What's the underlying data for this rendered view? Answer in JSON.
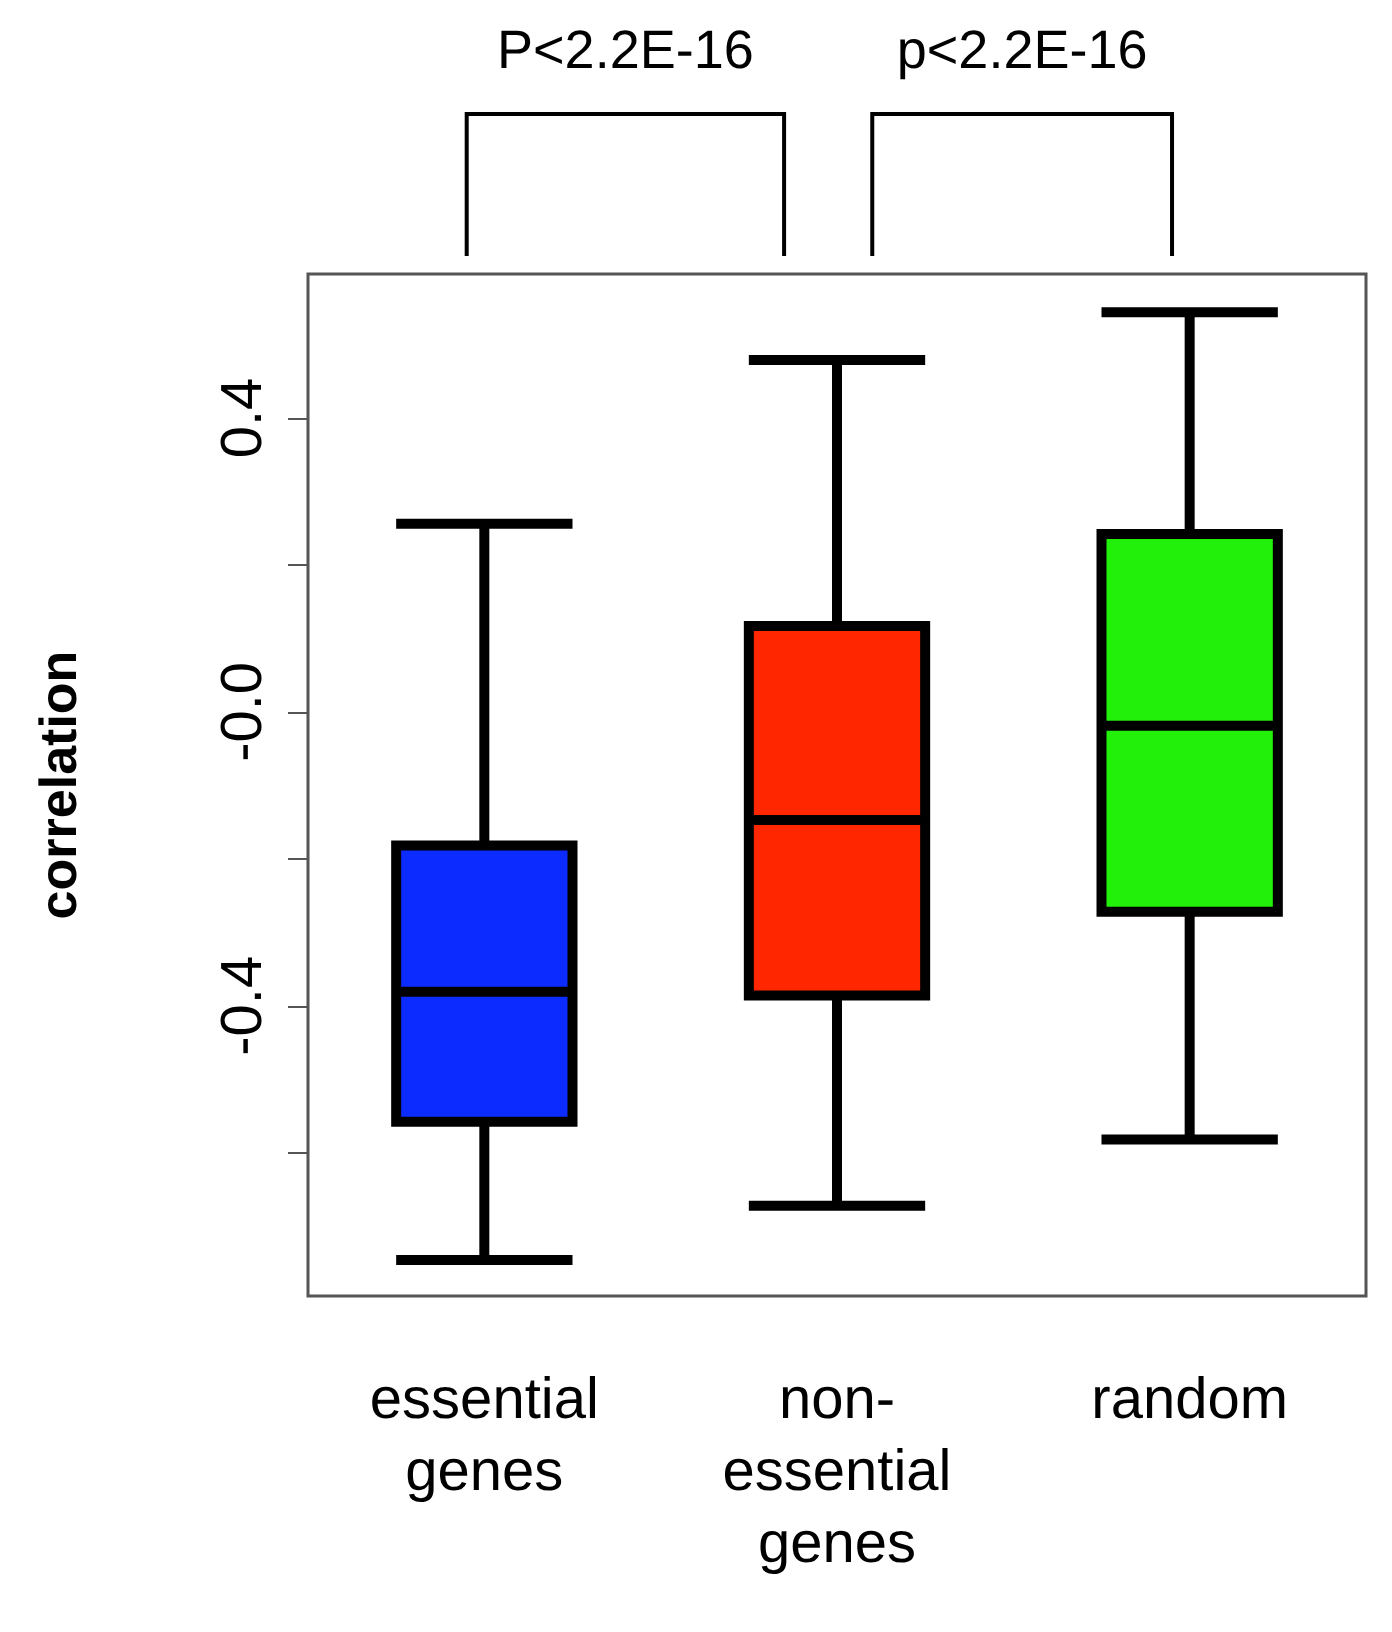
{
  "chart_data": {
    "type": "box",
    "ylabel": "correlation",
    "categories": [
      "essential\ngenes",
      "non-\nessential\ngenes",
      "random"
    ],
    "colors": [
      "#0c2cff",
      "#ff2600",
      "#22f00a"
    ],
    "boxes": [
      {
        "low": -0.746,
        "q1": -0.558,
        "median": -0.381,
        "q3": -0.182,
        "high": 0.256
      },
      {
        "low": -0.672,
        "q1": -0.386,
        "median": -0.147,
        "q3": 0.117,
        "high": 0.479
      },
      {
        "low": -0.582,
        "q1": -0.272,
        "median": -0.019,
        "q3": 0.242,
        "high": 0.544
      }
    ],
    "ylim": [
      -0.795,
      0.596
    ],
    "yticks": [
      {
        "value": -0.6,
        "label": null
      },
      -0.4,
      {
        "value": -0.2,
        "label": null
      },
      {
        "value": 0,
        "label": "-0.0"
      },
      {
        "value": 0.2,
        "label": null
      },
      0.4
    ],
    "annotations": [
      "P<2.2E-16",
      "p<2.2E-16"
    ],
    "grid": false
  }
}
